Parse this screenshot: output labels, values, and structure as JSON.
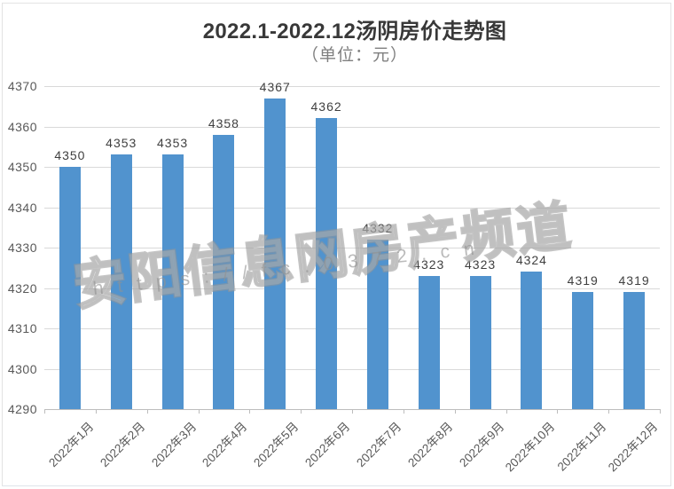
{
  "header": {
    "title": "2022.1-2022.12汤阴房价走势图",
    "subtitle": "（单位：元）"
  },
  "watermark": {
    "text": "安阳信息网房产频道",
    "url": "https://fc.0372.cn"
  },
  "chart_data": {
    "type": "bar",
    "title": "2022.1-2022.12汤阴房价走势图",
    "subtitle": "（单位：元）",
    "categories": [
      "2022年1月",
      "2022年2月",
      "2022年3月",
      "2022年4月",
      "2022年5月",
      "2022年6月",
      "2022年7月",
      "2022年8月",
      "2022年9月",
      "2022年10月",
      "2022年11月",
      "2022年12月"
    ],
    "values": [
      4350,
      4353,
      4353,
      4358,
      4367,
      4362,
      4332,
      4323,
      4323,
      4324,
      4319,
      4319
    ],
    "value_labels_shown": true,
    "xlabel": "",
    "ylabel": "",
    "ylim": [
      4290,
      4370
    ],
    "ytick_step": 10,
    "ytick_labels": [
      "4290",
      "4300",
      "4310",
      "4320",
      "4330",
      "4340",
      "4350",
      "4360",
      "4370"
    ],
    "grid": true,
    "legend": null,
    "bar_color": "#5193ce",
    "grid_color": "#d9d9d9",
    "axis_color": "#bdbdbd",
    "label_color": "#3f3f3f",
    "tick_label_color": "#595959"
  }
}
